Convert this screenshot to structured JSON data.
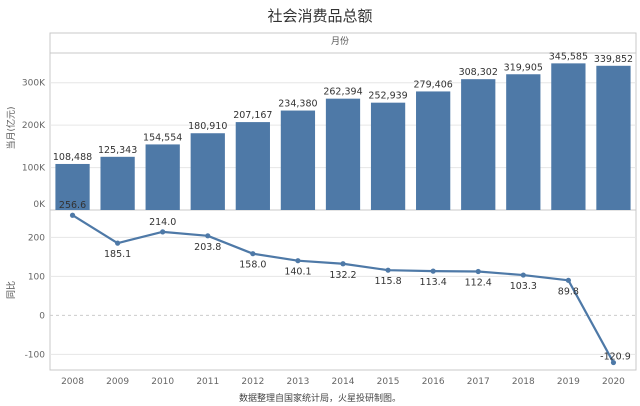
{
  "chart_data": [
    {
      "type": "bar",
      "title": "社会消费品总额",
      "header": "月份",
      "ylabel": "当月(亿元)",
      "categories": [
        "2008",
        "2009",
        "2010",
        "2011",
        "2012",
        "2013",
        "2014",
        "2015",
        "2016",
        "2017",
        "2018",
        "2019",
        "2020"
      ],
      "values": [
        108488,
        125343,
        154554,
        180910,
        207167,
        234380,
        262394,
        252939,
        279406,
        308302,
        319905,
        345585,
        339852
      ],
      "data_labels": [
        "108,488",
        "125,343",
        "154,554",
        "180,910",
        "207,167",
        "234,380",
        "262,394",
        "252,939",
        "279,406",
        "308,302",
        "319,905",
        "345,585",
        "339,852"
      ],
      "ylim": [
        0,
        370000
      ],
      "yticks": [
        0,
        100000,
        200000,
        300000
      ],
      "ytick_labels": [
        "0K",
        "100K",
        "200K",
        "300K"
      ],
      "color": "#4e79a7"
    },
    {
      "type": "line",
      "ylabel": "同比",
      "categories": [
        "2008",
        "2009",
        "2010",
        "2011",
        "2012",
        "2013",
        "2014",
        "2015",
        "2016",
        "2017",
        "2018",
        "2019",
        "2020"
      ],
      "values": [
        256.6,
        185.1,
        214.0,
        203.8,
        158.0,
        140.1,
        132.2,
        115.8,
        113.4,
        112.4,
        103.3,
        89.8,
        -120.9
      ],
      "data_labels": [
        "256.6",
        "185.1",
        "214.0",
        "203.8",
        "158.0",
        "140.1",
        "132.2",
        "115.8",
        "113.4",
        "112.4",
        "103.3",
        "89.8",
        "-120.9"
      ],
      "ylim": [
        -140,
        270
      ],
      "yticks": [
        -100,
        0,
        100,
        200
      ],
      "ytick_labels": [
        "-100",
        "0",
        "100",
        "200"
      ],
      "color": "#4e79a7"
    }
  ],
  "source": "数据整理自国家统计局，火星投研制图。"
}
